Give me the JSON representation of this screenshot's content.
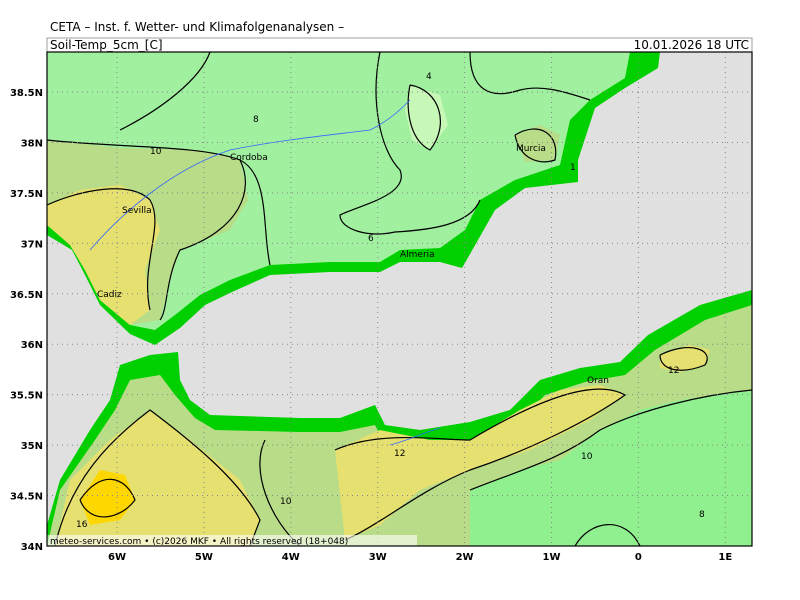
{
  "header": {
    "title": "CETA – Inst. f. Wetter- und Klimafolgenanalysen –",
    "variable": "Soil-Temp_5cm_[C]",
    "datetime": "10.01.2026 18 UTC"
  },
  "axes": {
    "lat": [
      "38.5N",
      "38N",
      "37.5N",
      "37N",
      "36.5N",
      "36N",
      "35.5N",
      "35N",
      "34.5N",
      "34N"
    ],
    "lon": [
      "6W",
      "5W",
      "4W",
      "3W",
      "2W",
      "1W",
      "0",
      "1E"
    ]
  },
  "cities": [
    "Cordoba",
    "Sevilla",
    "Cadiz",
    "Almeria",
    "Murcia",
    "Oran"
  ],
  "contour_labels": [
    "4",
    "8",
    "10",
    "6",
    "1",
    "12",
    "10",
    "10",
    "16",
    "8",
    "12"
  ],
  "footer": "meteo-services.com • (c)2026 MKF • All rights reserved (18+048)"
}
